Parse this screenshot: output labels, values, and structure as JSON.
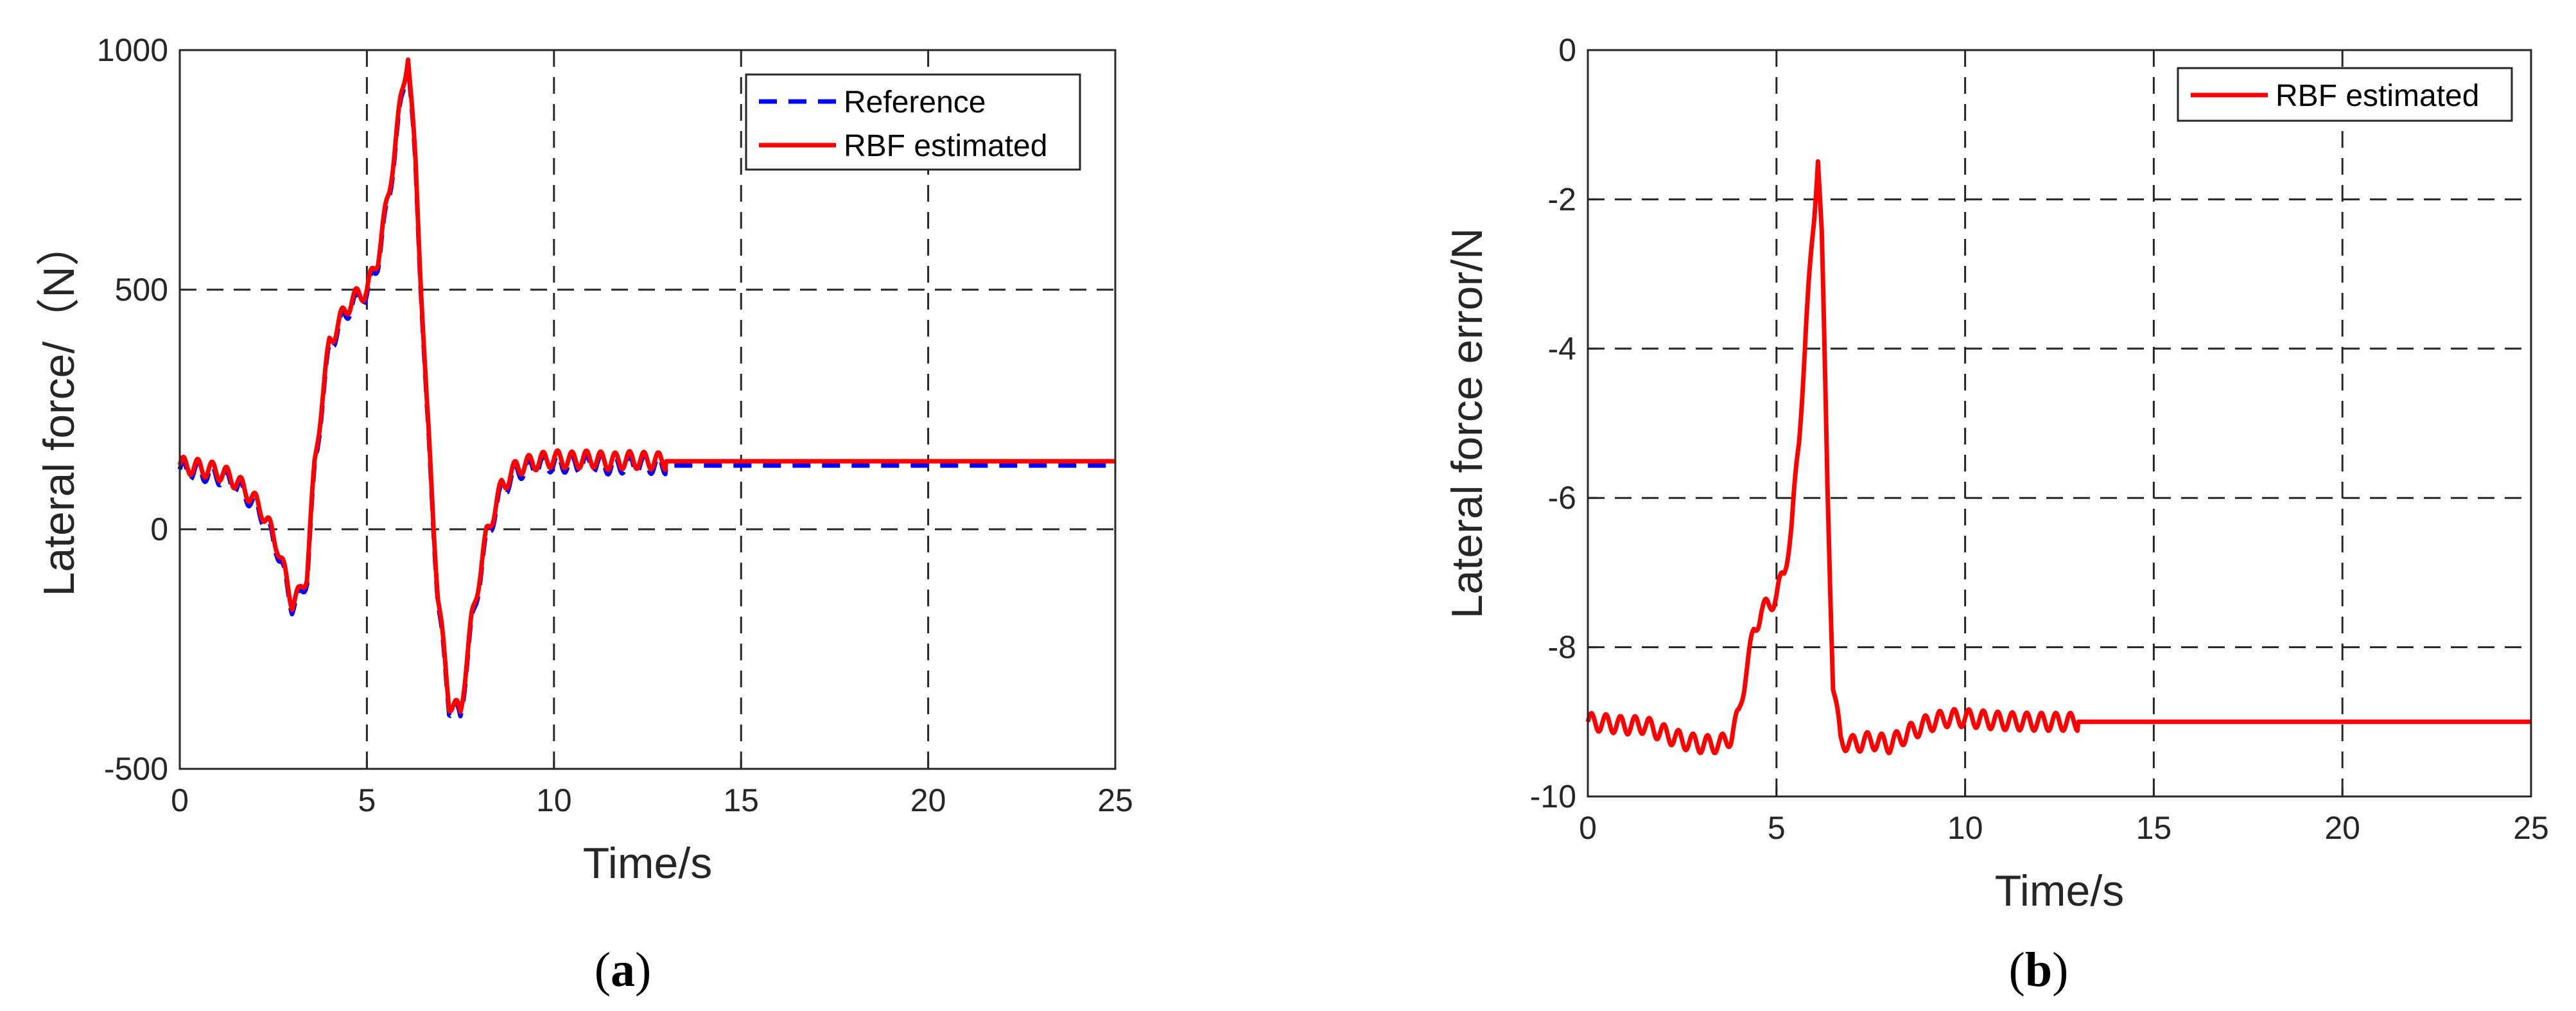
{
  "chart_data": [
    {
      "type": "line",
      "panel_label": "a",
      "xlabel": "Time/s",
      "ylabel": "Lateral force/（N）",
      "xlim": [
        0,
        25
      ],
      "ylim": [
        -500,
        1000
      ],
      "xticks": [
        0,
        5,
        10,
        15,
        20,
        25
      ],
      "yticks": [
        -500,
        0,
        500,
        1000
      ],
      "xtick_labels": [
        "0",
        "5",
        "10",
        "15",
        "20",
        "25"
      ],
      "ytick_labels": [
        "-500",
        "0",
        "500",
        "1000"
      ],
      "grid": true,
      "legend_position": "top-right",
      "series": [
        {
          "name": "Reference",
          "color": "#0000ff",
          "style": "dashed",
          "x": [
            0,
            0.3,
            0.6,
            1.0,
            1.4,
            1.8,
            2.2,
            2.6,
            3.0,
            3.2,
            3.4,
            3.6,
            3.8,
            4.0,
            4.3,
            4.6,
            5.0,
            5.3,
            5.6,
            5.9,
            6.1,
            6.3,
            6.6,
            6.9,
            7.2,
            7.5,
            7.8,
            8.2,
            8.6,
            9.0,
            9.5,
            10.0,
            10.5,
            11.0,
            11.5,
            12.0,
            12.5,
            13.0,
            25.0
          ],
          "y": [
            125,
            122,
            118,
            112,
            98,
            70,
            30,
            -40,
            -160,
            -145,
            -100,
            120,
            260,
            380,
            430,
            470,
            490,
            560,
            700,
            880,
            985,
            750,
            250,
            -150,
            -370,
            -390,
            -200,
            -20,
            80,
            120,
            132,
            138,
            135,
            138,
            132,
            136,
            134,
            133,
            133
          ]
        },
        {
          "name": "RBF estimated",
          "color": "#ff0000",
          "style": "solid",
          "x": [
            0,
            0.3,
            0.6,
            1.0,
            1.4,
            1.8,
            2.2,
            2.6,
            3.0,
            3.2,
            3.4,
            3.6,
            3.8,
            4.0,
            4.3,
            4.6,
            5.0,
            5.3,
            5.6,
            5.9,
            6.1,
            6.3,
            6.6,
            6.9,
            7.2,
            7.5,
            7.8,
            8.2,
            8.6,
            9.0,
            9.5,
            10.0,
            10.5,
            11.0,
            11.5,
            12.0,
            12.5,
            13.0,
            25.0
          ],
          "y": [
            134,
            131,
            127,
            121,
            107,
            79,
            39,
            -31,
            -151,
            -136,
            -91,
            129,
            269,
            389,
            439,
            479,
            499,
            569,
            709,
            889,
            994,
            759,
            259,
            -141,
            -361,
            -381,
            -191,
            -11,
            89,
            129,
            141,
            147,
            144,
            147,
            141,
            145,
            143,
            142,
            142
          ]
        }
      ]
    },
    {
      "type": "line",
      "panel_label": "b",
      "xlabel": "Time/s",
      "ylabel": "Lateral force error/N",
      "xlim": [
        0,
        25
      ],
      "ylim": [
        -10,
        0
      ],
      "xticks": [
        0,
        5,
        10,
        15,
        20,
        25
      ],
      "yticks": [
        -10,
        -8,
        -6,
        -4,
        -2,
        0
      ],
      "xtick_labels": [
        "0",
        "5",
        "10",
        "15",
        "20",
        "25"
      ],
      "ytick_labels": [
        "-10",
        "-8",
        "-6",
        "-4",
        "-2",
        "0"
      ],
      "grid": true,
      "legend_position": "top-right",
      "series": [
        {
          "name": "RBF estimated",
          "color": "#ff0000",
          "style": "solid",
          "x": [
            0,
            0.5,
            1.0,
            1.5,
            2.0,
            2.5,
            3.0,
            3.5,
            3.8,
            4.0,
            4.2,
            4.4,
            4.6,
            4.8,
            5.0,
            5.2,
            5.4,
            5.6,
            5.8,
            6.0,
            6.1,
            6.2,
            6.35,
            6.5,
            6.7,
            7.0,
            7.5,
            8.0,
            8.5,
            9.0,
            9.5,
            10.0,
            10.5,
            11.0,
            12.0,
            13.0,
            25.0
          ],
          "y": [
            -9.0,
            -9.02,
            -9.05,
            -9.04,
            -9.15,
            -9.25,
            -9.3,
            -9.3,
            -9.2,
            -8.9,
            -8.3,
            -7.8,
            -7.5,
            -7.45,
            -7.3,
            -7.0,
            -6.4,
            -5.2,
            -3.6,
            -2.2,
            -1.4,
            -2.5,
            -5.8,
            -8.5,
            -9.25,
            -9.3,
            -9.25,
            -9.3,
            -9.15,
            -9.02,
            -8.95,
            -8.95,
            -8.97,
            -8.99,
            -9.0,
            -9.0,
            -9.0
          ]
        }
      ]
    }
  ]
}
